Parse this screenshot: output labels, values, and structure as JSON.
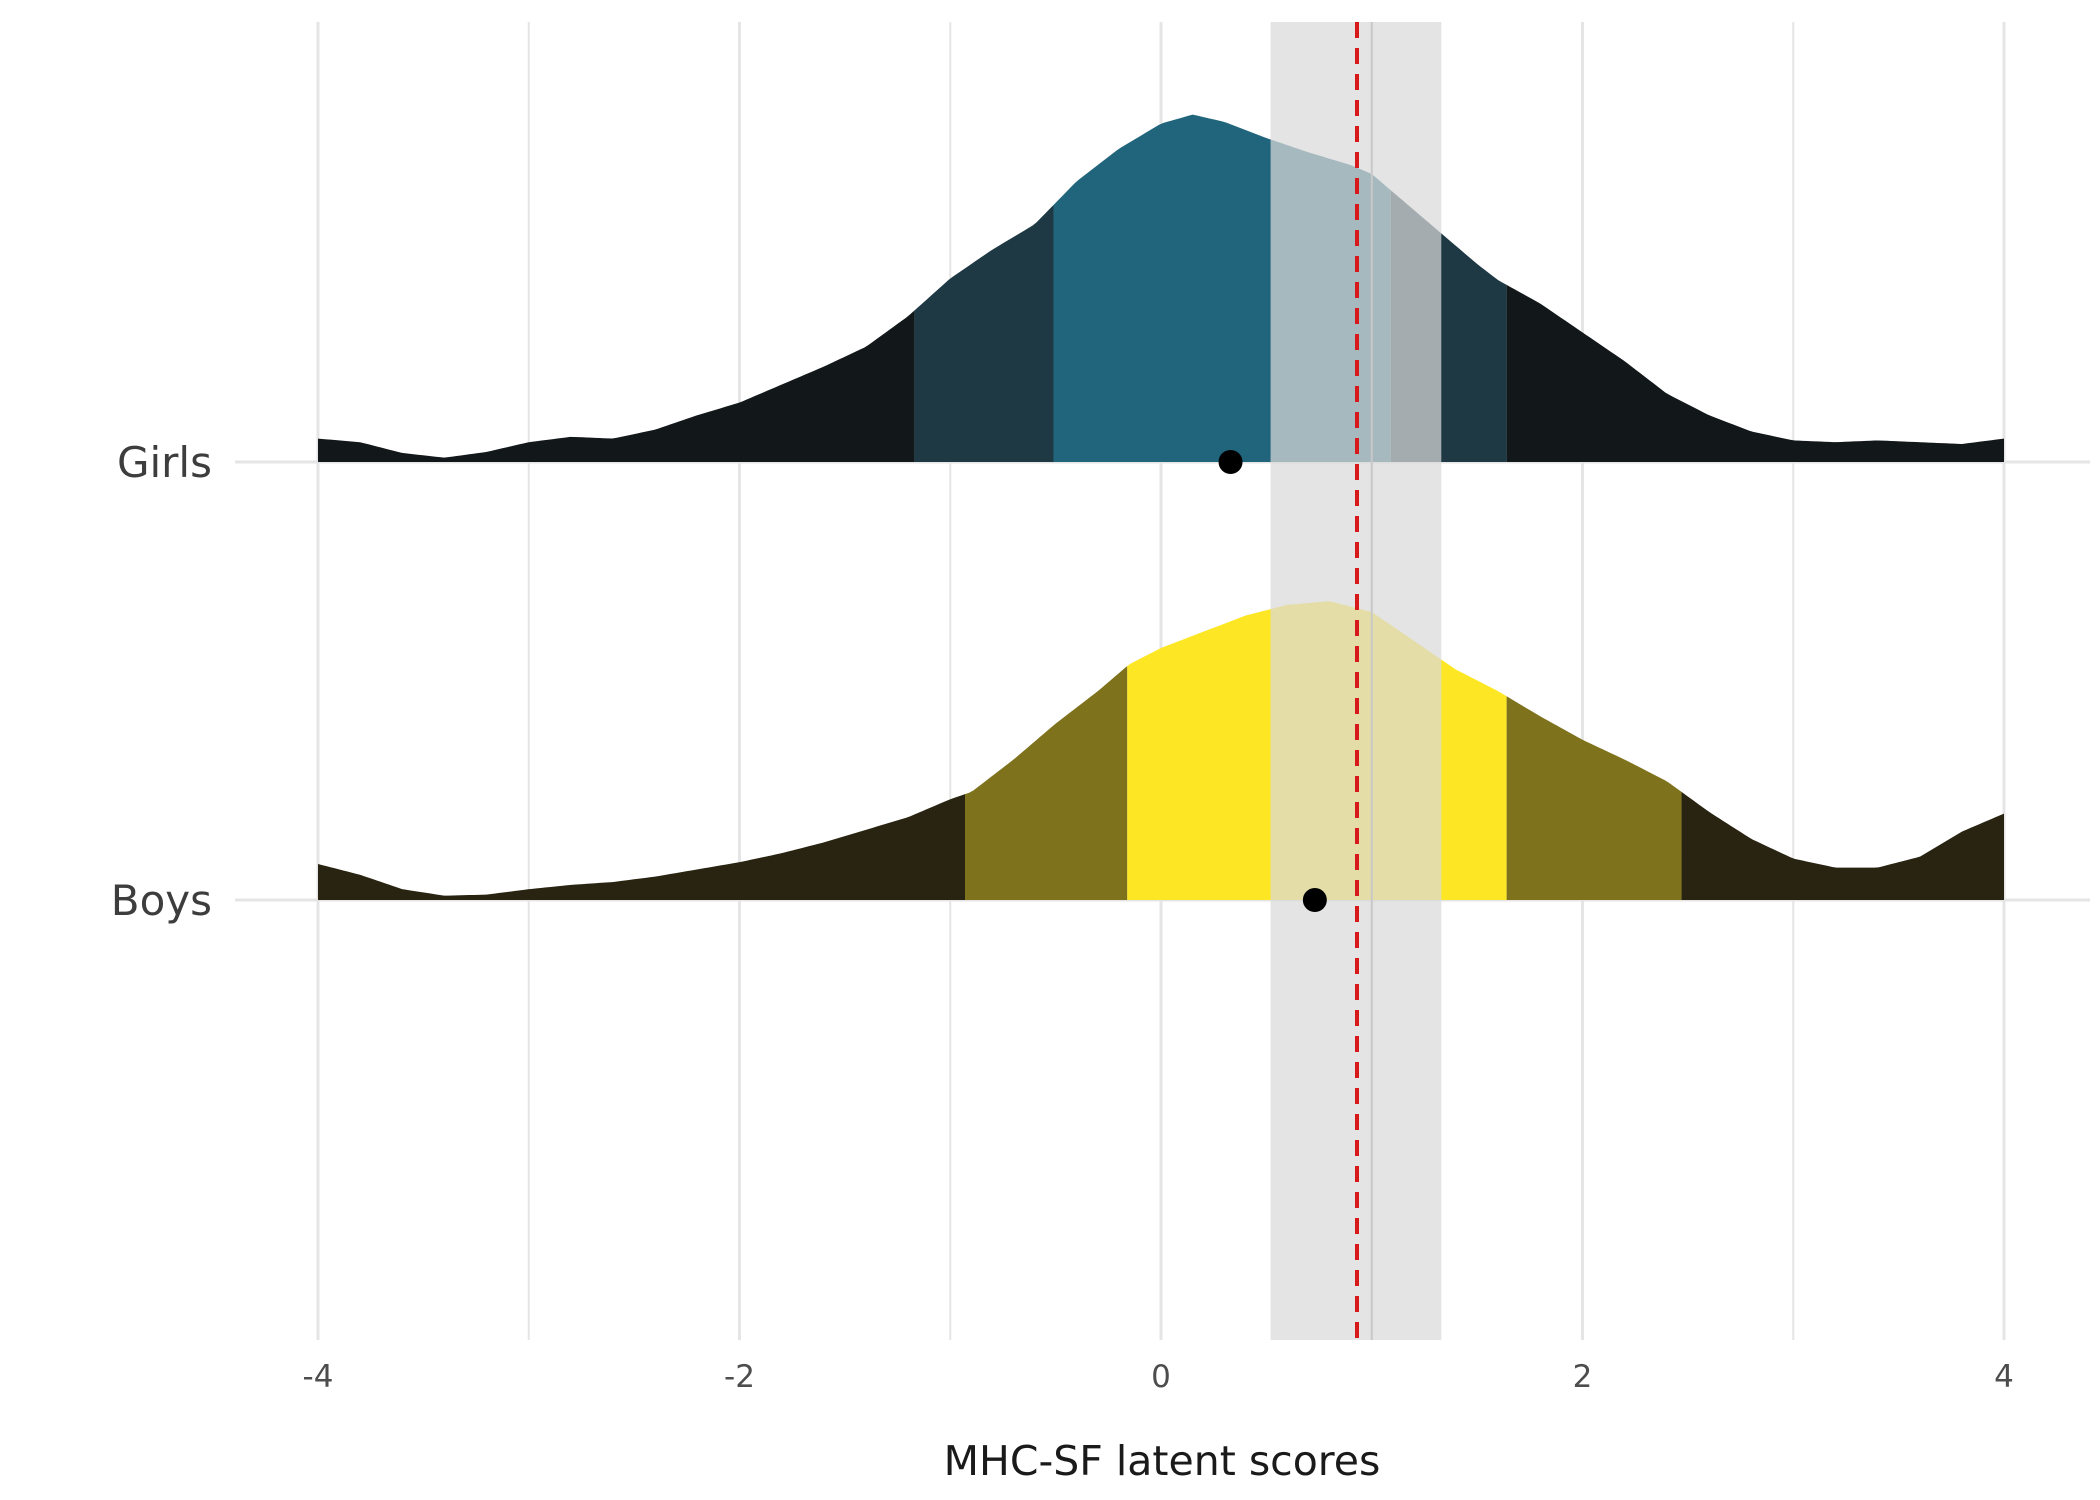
{
  "chart_data": {
    "type": "ridgeline",
    "xlabel": "MHC-SF latent scores",
    "xlim": [
      -4,
      4
    ],
    "xticks": [
      -4,
      -2,
      0,
      2,
      4
    ],
    "grid": true,
    "reference_band": {
      "from": 0.52,
      "to": 1.33,
      "color": "#d9d9d9"
    },
    "reference_line": {
      "x": 0.93,
      "color": "#d7191c",
      "style": "dashed"
    },
    "quantile_shades": [
      "inner 50%",
      "inner 80%",
      "outer tails"
    ],
    "series": [
      {
        "name": "Girls",
        "colors": {
          "inner": "#21657c",
          "mid": "#1e3844",
          "outer": "#12171a"
        },
        "quantile_cuts": [
          -1.17,
          -0.51,
          1.09,
          1.64
        ],
        "mean": 0.33,
        "density_points": [
          [
            -4.0,
            0.065
          ],
          [
            -3.8,
            0.055
          ],
          [
            -3.6,
            0.025
          ],
          [
            -3.4,
            0.012
          ],
          [
            -3.2,
            0.028
          ],
          [
            -3.0,
            0.055
          ],
          [
            -2.8,
            0.07
          ],
          [
            -2.6,
            0.065
          ],
          [
            -2.4,
            0.09
          ],
          [
            -2.2,
            0.13
          ],
          [
            -2.0,
            0.165
          ],
          [
            -1.8,
            0.215
          ],
          [
            -1.6,
            0.265
          ],
          [
            -1.4,
            0.32
          ],
          [
            -1.2,
            0.405
          ],
          [
            -1.0,
            0.51
          ],
          [
            -0.8,
            0.59
          ],
          [
            -0.6,
            0.66
          ],
          [
            -0.5,
            0.72
          ],
          [
            -0.4,
            0.78
          ],
          [
            -0.2,
            0.87
          ],
          [
            0.0,
            0.94
          ],
          [
            0.15,
            0.965
          ],
          [
            0.3,
            0.945
          ],
          [
            0.5,
            0.9
          ],
          [
            0.7,
            0.86
          ],
          [
            0.9,
            0.825
          ],
          [
            1.0,
            0.8
          ],
          [
            1.1,
            0.75
          ],
          [
            1.3,
            0.65
          ],
          [
            1.5,
            0.55
          ],
          [
            1.6,
            0.505
          ],
          [
            1.8,
            0.44
          ],
          [
            2.0,
            0.36
          ],
          [
            2.2,
            0.28
          ],
          [
            2.4,
            0.19
          ],
          [
            2.6,
            0.13
          ],
          [
            2.8,
            0.085
          ],
          [
            3.0,
            0.06
          ],
          [
            3.2,
            0.055
          ],
          [
            3.4,
            0.06
          ],
          [
            3.6,
            0.055
          ],
          [
            3.8,
            0.05
          ],
          [
            4.0,
            0.065
          ]
        ]
      },
      {
        "name": "Boys",
        "colors": {
          "inner": "#fde725",
          "mid": "#7f721c",
          "outer": "#282411"
        },
        "quantile_cuts": [
          -0.93,
          -0.16,
          1.64,
          2.47
        ],
        "mean": 0.73,
        "density_points": [
          [
            -4.0,
            0.1
          ],
          [
            -3.8,
            0.07
          ],
          [
            -3.6,
            0.03
          ],
          [
            -3.4,
            0.012
          ],
          [
            -3.2,
            0.015
          ],
          [
            -3.0,
            0.03
          ],
          [
            -2.8,
            0.042
          ],
          [
            -2.6,
            0.05
          ],
          [
            -2.4,
            0.065
          ],
          [
            -2.2,
            0.085
          ],
          [
            -2.0,
            0.105
          ],
          [
            -1.8,
            0.13
          ],
          [
            -1.6,
            0.16
          ],
          [
            -1.4,
            0.195
          ],
          [
            -1.2,
            0.23
          ],
          [
            -1.0,
            0.28
          ],
          [
            -0.9,
            0.3
          ],
          [
            -0.7,
            0.39
          ],
          [
            -0.5,
            0.49
          ],
          [
            -0.3,
            0.58
          ],
          [
            -0.15,
            0.655
          ],
          [
            0.0,
            0.7
          ],
          [
            0.2,
            0.745
          ],
          [
            0.4,
            0.79
          ],
          [
            0.6,
            0.82
          ],
          [
            0.8,
            0.83
          ],
          [
            1.0,
            0.8
          ],
          [
            1.2,
            0.72
          ],
          [
            1.4,
            0.64
          ],
          [
            1.6,
            0.58
          ],
          [
            1.8,
            0.51
          ],
          [
            2.0,
            0.445
          ],
          [
            2.2,
            0.39
          ],
          [
            2.4,
            0.33
          ],
          [
            2.6,
            0.245
          ],
          [
            2.8,
            0.17
          ],
          [
            3.0,
            0.115
          ],
          [
            3.2,
            0.09
          ],
          [
            3.4,
            0.09
          ],
          [
            3.6,
            0.12
          ],
          [
            3.8,
            0.19
          ],
          [
            4.0,
            0.24
          ]
        ]
      }
    ]
  }
}
